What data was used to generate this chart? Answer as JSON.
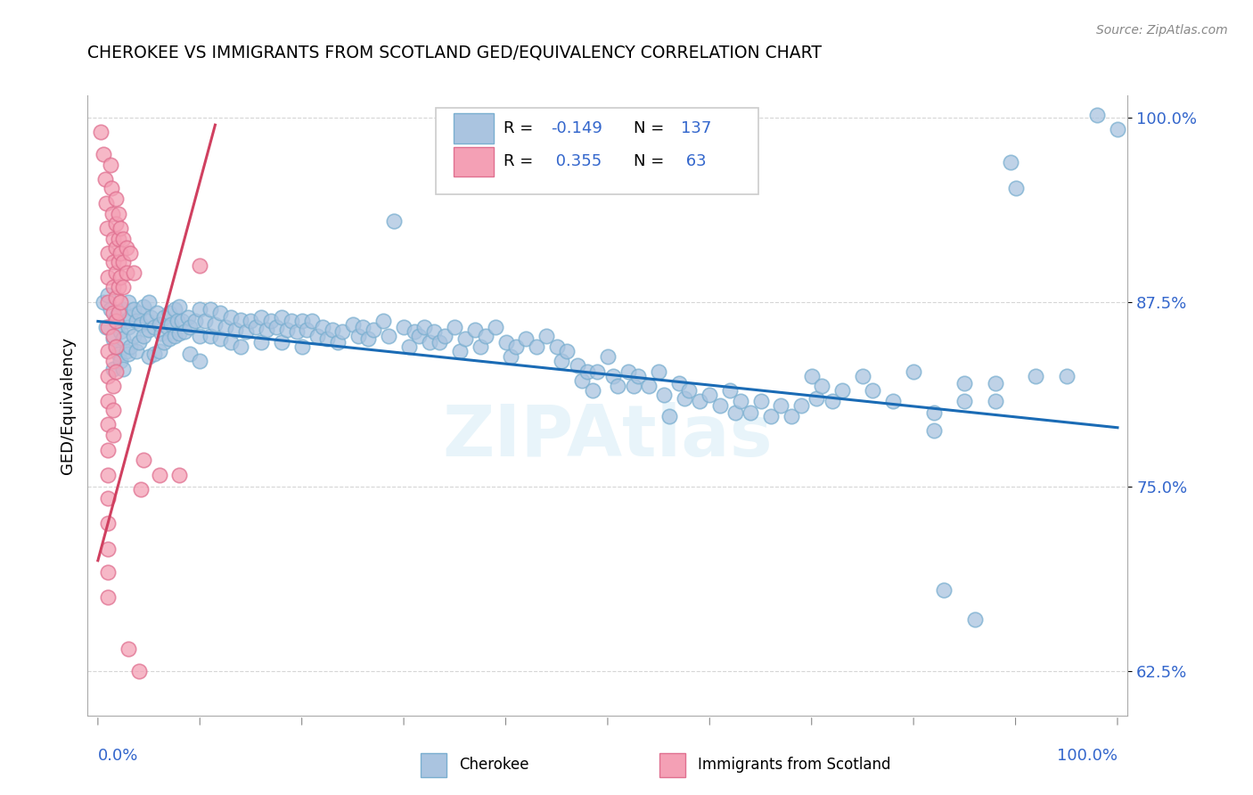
{
  "title": "CHEROKEE VS IMMIGRANTS FROM SCOTLAND GED/EQUIVALENCY CORRELATION CHART",
  "source": "Source: ZipAtlas.com",
  "ylabel": "GED/Equivalency",
  "watermark": "ZIPAtlas",
  "cherokee_color": "#aac4e0",
  "cherokee_edge": "#7aafd0",
  "scotland_color": "#f4a0b5",
  "scotland_edge": "#e07090",
  "trendline_blue": "#1a6bb5",
  "trendline_pink": "#d04060",
  "text_blue": "#3366cc",
  "background_color": "#ffffff",
  "grid_color": "#cccccc",
  "ylim": [
    0.595,
    1.015
  ],
  "xlim": [
    -0.01,
    1.01
  ],
  "cherokee_trend_x": [
    0.0,
    1.0
  ],
  "cherokee_trend_y": [
    0.862,
    0.79
  ],
  "scotland_trend_x": [
    0.0,
    0.115
  ],
  "scotland_trend_y": [
    0.7,
    0.995
  ],
  "cherokee_scatter": [
    [
      0.005,
      0.875
    ],
    [
      0.008,
      0.858
    ],
    [
      0.01,
      0.88
    ],
    [
      0.012,
      0.87
    ],
    [
      0.015,
      0.85
    ],
    [
      0.015,
      0.83
    ],
    [
      0.018,
      0.865
    ],
    [
      0.018,
      0.845
    ],
    [
      0.02,
      0.86
    ],
    [
      0.02,
      0.84
    ],
    [
      0.022,
      0.855
    ],
    [
      0.022,
      0.835
    ],
    [
      0.025,
      0.87
    ],
    [
      0.025,
      0.85
    ],
    [
      0.025,
      0.83
    ],
    [
      0.028,
      0.862
    ],
    [
      0.028,
      0.842
    ],
    [
      0.03,
      0.875
    ],
    [
      0.03,
      0.858
    ],
    [
      0.03,
      0.84
    ],
    [
      0.032,
      0.865
    ],
    [
      0.032,
      0.845
    ],
    [
      0.035,
      0.87
    ],
    [
      0.035,
      0.852
    ],
    [
      0.038,
      0.862
    ],
    [
      0.038,
      0.842
    ],
    [
      0.04,
      0.868
    ],
    [
      0.04,
      0.848
    ],
    [
      0.042,
      0.86
    ],
    [
      0.045,
      0.872
    ],
    [
      0.045,
      0.852
    ],
    [
      0.048,
      0.862
    ],
    [
      0.05,
      0.875
    ],
    [
      0.05,
      0.856
    ],
    [
      0.05,
      0.838
    ],
    [
      0.052,
      0.865
    ],
    [
      0.055,
      0.858
    ],
    [
      0.055,
      0.84
    ],
    [
      0.058,
      0.868
    ],
    [
      0.06,
      0.86
    ],
    [
      0.06,
      0.842
    ],
    [
      0.062,
      0.854
    ],
    [
      0.065,
      0.865
    ],
    [
      0.065,
      0.848
    ],
    [
      0.068,
      0.858
    ],
    [
      0.07,
      0.868
    ],
    [
      0.07,
      0.85
    ],
    [
      0.072,
      0.86
    ],
    [
      0.075,
      0.87
    ],
    [
      0.075,
      0.852
    ],
    [
      0.078,
      0.862
    ],
    [
      0.08,
      0.872
    ],
    [
      0.08,
      0.854
    ],
    [
      0.082,
      0.862
    ],
    [
      0.085,
      0.855
    ],
    [
      0.088,
      0.865
    ],
    [
      0.09,
      0.858
    ],
    [
      0.09,
      0.84
    ],
    [
      0.095,
      0.862
    ],
    [
      0.1,
      0.87
    ],
    [
      0.1,
      0.852
    ],
    [
      0.1,
      0.835
    ],
    [
      0.105,
      0.862
    ],
    [
      0.11,
      0.87
    ],
    [
      0.11,
      0.852
    ],
    [
      0.115,
      0.86
    ],
    [
      0.12,
      0.868
    ],
    [
      0.12,
      0.85
    ],
    [
      0.125,
      0.858
    ],
    [
      0.13,
      0.865
    ],
    [
      0.13,
      0.848
    ],
    [
      0.135,
      0.856
    ],
    [
      0.14,
      0.863
    ],
    [
      0.14,
      0.845
    ],
    [
      0.145,
      0.855
    ],
    [
      0.15,
      0.862
    ],
    [
      0.155,
      0.858
    ],
    [
      0.16,
      0.865
    ],
    [
      0.16,
      0.848
    ],
    [
      0.165,
      0.856
    ],
    [
      0.17,
      0.862
    ],
    [
      0.175,
      0.858
    ],
    [
      0.18,
      0.865
    ],
    [
      0.18,
      0.848
    ],
    [
      0.185,
      0.856
    ],
    [
      0.19,
      0.862
    ],
    [
      0.195,
      0.855
    ],
    [
      0.2,
      0.862
    ],
    [
      0.2,
      0.845
    ],
    [
      0.205,
      0.856
    ],
    [
      0.21,
      0.862
    ],
    [
      0.215,
      0.852
    ],
    [
      0.22,
      0.858
    ],
    [
      0.225,
      0.85
    ],
    [
      0.23,
      0.856
    ],
    [
      0.235,
      0.848
    ],
    [
      0.24,
      0.855
    ],
    [
      0.25,
      0.86
    ],
    [
      0.255,
      0.852
    ],
    [
      0.26,
      0.858
    ],
    [
      0.265,
      0.85
    ],
    [
      0.27,
      0.856
    ],
    [
      0.28,
      0.862
    ],
    [
      0.285,
      0.852
    ],
    [
      0.29,
      0.93
    ],
    [
      0.3,
      0.858
    ],
    [
      0.305,
      0.845
    ],
    [
      0.31,
      0.855
    ],
    [
      0.315,
      0.852
    ],
    [
      0.32,
      0.858
    ],
    [
      0.325,
      0.848
    ],
    [
      0.33,
      0.855
    ],
    [
      0.335,
      0.848
    ],
    [
      0.34,
      0.852
    ],
    [
      0.35,
      0.858
    ],
    [
      0.355,
      0.842
    ],
    [
      0.36,
      0.85
    ],
    [
      0.37,
      0.856
    ],
    [
      0.375,
      0.845
    ],
    [
      0.38,
      0.852
    ],
    [
      0.39,
      0.858
    ],
    [
      0.4,
      0.848
    ],
    [
      0.405,
      0.838
    ],
    [
      0.41,
      0.845
    ],
    [
      0.42,
      0.85
    ],
    [
      0.43,
      0.845
    ],
    [
      0.44,
      0.852
    ],
    [
      0.45,
      0.845
    ],
    [
      0.455,
      0.835
    ],
    [
      0.46,
      0.842
    ],
    [
      0.47,
      0.832
    ],
    [
      0.475,
      0.822
    ],
    [
      0.48,
      0.828
    ],
    [
      0.485,
      0.815
    ],
    [
      0.49,
      0.828
    ],
    [
      0.5,
      0.838
    ],
    [
      0.505,
      0.825
    ],
    [
      0.51,
      0.818
    ],
    [
      0.52,
      0.828
    ],
    [
      0.525,
      0.818
    ],
    [
      0.53,
      0.825
    ],
    [
      0.54,
      0.818
    ],
    [
      0.55,
      0.828
    ],
    [
      0.555,
      0.812
    ],
    [
      0.56,
      0.798
    ],
    [
      0.57,
      0.82
    ],
    [
      0.575,
      0.81
    ],
    [
      0.58,
      0.815
    ],
    [
      0.59,
      0.808
    ],
    [
      0.6,
      0.812
    ],
    [
      0.61,
      0.805
    ],
    [
      0.62,
      0.815
    ],
    [
      0.625,
      0.8
    ],
    [
      0.63,
      0.808
    ],
    [
      0.64,
      0.8
    ],
    [
      0.65,
      0.808
    ],
    [
      0.66,
      0.798
    ],
    [
      0.67,
      0.805
    ],
    [
      0.68,
      0.798
    ],
    [
      0.69,
      0.805
    ],
    [
      0.7,
      0.825
    ],
    [
      0.705,
      0.81
    ],
    [
      0.71,
      0.818
    ],
    [
      0.72,
      0.808
    ],
    [
      0.73,
      0.815
    ],
    [
      0.75,
      0.825
    ],
    [
      0.76,
      0.815
    ],
    [
      0.78,
      0.808
    ],
    [
      0.8,
      0.828
    ],
    [
      0.82,
      0.8
    ],
    [
      0.82,
      0.788
    ],
    [
      0.83,
      0.68
    ],
    [
      0.85,
      0.82
    ],
    [
      0.85,
      0.808
    ],
    [
      0.86,
      0.66
    ],
    [
      0.88,
      0.82
    ],
    [
      0.88,
      0.808
    ],
    [
      0.895,
      0.97
    ],
    [
      0.9,
      0.952
    ],
    [
      0.92,
      0.825
    ],
    [
      0.95,
      0.825
    ],
    [
      0.98,
      1.002
    ],
    [
      1.0,
      0.992
    ]
  ],
  "scotland_scatter": [
    [
      0.003,
      0.99
    ],
    [
      0.005,
      0.975
    ],
    [
      0.007,
      0.958
    ],
    [
      0.008,
      0.942
    ],
    [
      0.009,
      0.925
    ],
    [
      0.01,
      0.908
    ],
    [
      0.01,
      0.892
    ],
    [
      0.01,
      0.875
    ],
    [
      0.01,
      0.858
    ],
    [
      0.01,
      0.842
    ],
    [
      0.01,
      0.825
    ],
    [
      0.01,
      0.808
    ],
    [
      0.01,
      0.792
    ],
    [
      0.01,
      0.775
    ],
    [
      0.01,
      0.758
    ],
    [
      0.01,
      0.742
    ],
    [
      0.01,
      0.725
    ],
    [
      0.01,
      0.708
    ],
    [
      0.01,
      0.692
    ],
    [
      0.01,
      0.675
    ],
    [
      0.012,
      0.968
    ],
    [
      0.013,
      0.952
    ],
    [
      0.014,
      0.935
    ],
    [
      0.015,
      0.918
    ],
    [
      0.015,
      0.902
    ],
    [
      0.015,
      0.885
    ],
    [
      0.015,
      0.868
    ],
    [
      0.015,
      0.852
    ],
    [
      0.015,
      0.835
    ],
    [
      0.015,
      0.818
    ],
    [
      0.015,
      0.802
    ],
    [
      0.015,
      0.785
    ],
    [
      0.018,
      0.945
    ],
    [
      0.018,
      0.928
    ],
    [
      0.018,
      0.912
    ],
    [
      0.018,
      0.895
    ],
    [
      0.018,
      0.878
    ],
    [
      0.018,
      0.862
    ],
    [
      0.018,
      0.845
    ],
    [
      0.018,
      0.828
    ],
    [
      0.02,
      0.935
    ],
    [
      0.02,
      0.918
    ],
    [
      0.02,
      0.902
    ],
    [
      0.02,
      0.885
    ],
    [
      0.02,
      0.868
    ],
    [
      0.022,
      0.925
    ],
    [
      0.022,
      0.908
    ],
    [
      0.022,
      0.892
    ],
    [
      0.022,
      0.875
    ],
    [
      0.025,
      0.918
    ],
    [
      0.025,
      0.902
    ],
    [
      0.025,
      0.885
    ],
    [
      0.028,
      0.912
    ],
    [
      0.028,
      0.895
    ],
    [
      0.03,
      0.64
    ],
    [
      0.032,
      0.908
    ],
    [
      0.035,
      0.895
    ],
    [
      0.04,
      0.625
    ],
    [
      0.042,
      0.748
    ],
    [
      0.045,
      0.768
    ],
    [
      0.06,
      0.758
    ],
    [
      0.08,
      0.758
    ],
    [
      0.1,
      0.9
    ]
  ]
}
